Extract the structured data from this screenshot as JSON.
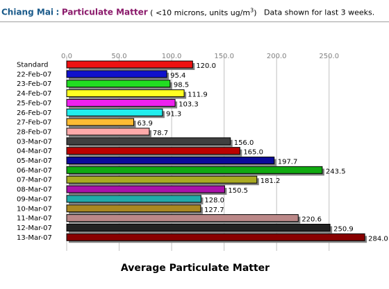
{
  "header": {
    "city": "Chiang Mai",
    "separator": ":",
    "parameter": "Particulate Matter",
    "units_open": "( <10 microns, units ug/m",
    "units_sup": "3",
    "units_close": ")",
    "note": "Data shown for last 3 weeks."
  },
  "chart_data": {
    "type": "bar",
    "orientation": "horizontal",
    "title": "",
    "xlabel": "Average Particulate Matter",
    "ylabel": "",
    "xlim": [
      0,
      284
    ],
    "xticks": [
      0,
      50,
      100,
      150,
      200,
      250
    ],
    "xtick_labels": [
      "0.0",
      "50.0",
      "100.0",
      "150.0",
      "200.0",
      "250.0"
    ],
    "grid": true,
    "categories": [
      "Standard",
      "22-Feb-07",
      "23-Feb-07",
      "24-Feb-07",
      "25-Feb-07",
      "26-Feb-07",
      "27-Feb-07",
      "28-Feb-07",
      "03-Mar-07",
      "04-Mar-07",
      "05-Mar-07",
      "06-Mar-07",
      "07-Mar-07",
      "08-Mar-07",
      "09-Mar-07",
      "10-Mar-07",
      "11-Mar-07",
      "12-Mar-07",
      "13-Mar-07"
    ],
    "values": [
      120.0,
      95.4,
      98.5,
      111.9,
      103.3,
      91.3,
      63.9,
      78.7,
      156.0,
      165.0,
      197.7,
      243.5,
      181.2,
      150.5,
      128.0,
      127.7,
      220.6,
      250.9,
      284.0
    ],
    "value_labels": [
      "120.0",
      "95.4",
      "98.5",
      "111.9",
      "103.3",
      "91.3",
      "63.9",
      "78.7",
      "156.0",
      "165.0",
      "197.7",
      "243.5",
      "181.2",
      "150.5",
      "128.0",
      "127.7",
      "220.6",
      "250.9",
      "284.0"
    ],
    "colors": [
      "#ee1111",
      "#1111cc",
      "#22dd22",
      "#ffff22",
      "#ee22ee",
      "#22eeee",
      "#ffbb33",
      "#ffaaaa",
      "#404040",
      "#bb0000",
      "#0a0a99",
      "#11aa11",
      "#aaaa22",
      "#aa11aa",
      "#22aaaa",
      "#aa8822",
      "#bb8888",
      "#222222",
      "#880000"
    ],
    "shadow_color": "#808080"
  }
}
